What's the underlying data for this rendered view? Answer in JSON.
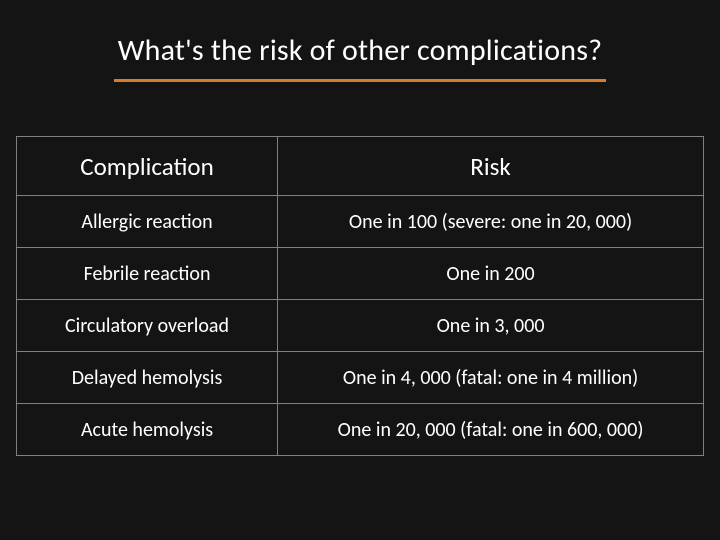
{
  "colors": {
    "background": "#141414",
    "text": "#ffffff",
    "title_underline": "#d67f2a",
    "table_border": "#7f7f7f"
  },
  "title": "What's the risk of other complications?",
  "table": {
    "columns": [
      "Complication",
      "Risk"
    ],
    "rows": [
      [
        "Allergic reaction",
        "One in 100 (severe: one in 20, 000)"
      ],
      [
        "Febrile reaction",
        "One in 200"
      ],
      [
        "Circulatory overload",
        "One in 3, 000"
      ],
      [
        "Delayed hemolysis",
        "One in 4, 000 (fatal: one in 4 million)"
      ],
      [
        "Acute hemolysis",
        "One in 20, 000 (fatal: one in 600, 000)"
      ]
    ],
    "header_fontsize": 25,
    "cell_fontsize": 20,
    "column_widths_pct": [
      38,
      62
    ]
  }
}
